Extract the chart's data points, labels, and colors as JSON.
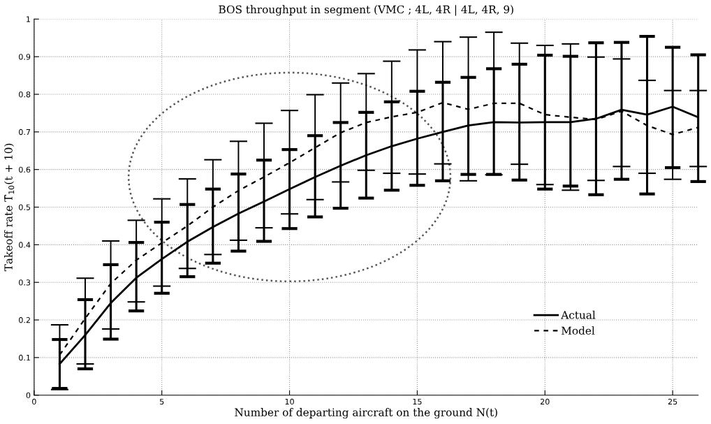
{
  "chart_data": {
    "type": "line",
    "title": "BOS throughput in segment (VMC ; 4L, 4R | 4L, 4R, 9)",
    "xlabel": "Number of departing aircraft on the ground N(t)",
    "ylabel": "Takeoff rate T̄$_{10}$(t + 10)",
    "x": [
      1,
      2,
      3,
      4,
      5,
      6,
      7,
      8,
      9,
      10,
      11,
      12,
      13,
      14,
      15,
      16,
      17,
      18,
      19,
      20,
      21,
      22,
      23,
      24,
      25,
      26
    ],
    "series": [
      {
        "name": "Actual",
        "color": "#000000",
        "line_style": "solid",
        "values": [
          0.083,
          0.16,
          0.245,
          0.312,
          0.362,
          0.408,
          0.447,
          0.483,
          0.515,
          0.548,
          0.58,
          0.61,
          0.638,
          0.662,
          0.682,
          0.7,
          0.717,
          0.726,
          0.725,
          0.726,
          0.726,
          0.735,
          0.759,
          0.746,
          0.767,
          0.739
        ],
        "errors": [
          [
            0.018,
            0.148
          ],
          [
            0.07,
            0.254
          ],
          [
            0.149,
            0.347
          ],
          [
            0.224,
            0.406
          ],
          [
            0.271,
            0.46
          ],
          [
            0.315,
            0.507
          ],
          [
            0.351,
            0.548
          ],
          [
            0.383,
            0.588
          ],
          [
            0.409,
            0.625
          ],
          [
            0.443,
            0.653
          ],
          [
            0.474,
            0.69
          ],
          [
            0.497,
            0.725
          ],
          [
            0.524,
            0.752
          ],
          [
            0.545,
            0.78
          ],
          [
            0.558,
            0.808
          ],
          [
            0.57,
            0.832
          ],
          [
            0.587,
            0.845
          ],
          [
            0.587,
            0.868
          ],
          [
            0.572,
            0.88
          ],
          [
            0.548,
            0.904
          ],
          [
            0.556,
            0.901
          ],
          [
            0.533,
            0.937
          ],
          [
            0.574,
            0.938
          ],
          [
            0.535,
            0.954
          ],
          [
            0.605,
            0.925
          ],
          [
            0.568,
            0.905
          ]
        ]
      },
      {
        "name": "Model",
        "color": "#000000",
        "line_style": "dashed",
        "values": [
          0.107,
          0.204,
          0.297,
          0.359,
          0.405,
          0.45,
          0.5,
          0.544,
          0.58,
          0.618,
          0.658,
          0.698,
          0.725,
          0.74,
          0.752,
          0.778,
          0.76,
          0.776,
          0.776,
          0.746,
          0.739,
          0.733,
          0.755,
          0.717,
          0.693,
          0.712
        ],
        "errors": [
          [
            0.015,
            0.187
          ],
          [
            0.083,
            0.311
          ],
          [
            0.176,
            0.41
          ],
          [
            0.248,
            0.465
          ],
          [
            0.29,
            0.522
          ],
          [
            0.337,
            0.575
          ],
          [
            0.374,
            0.626
          ],
          [
            0.412,
            0.675
          ],
          [
            0.445,
            0.723
          ],
          [
            0.482,
            0.757
          ],
          [
            0.52,
            0.799
          ],
          [
            0.567,
            0.83
          ],
          [
            0.598,
            0.855
          ],
          [
            0.59,
            0.888
          ],
          [
            0.588,
            0.918
          ],
          [
            0.615,
            0.94
          ],
          [
            0.57,
            0.952
          ],
          [
            0.586,
            0.965
          ],
          [
            0.614,
            0.936
          ],
          [
            0.56,
            0.93
          ],
          [
            0.545,
            0.934
          ],
          [
            0.571,
            0.899
          ],
          [
            0.608,
            0.894
          ],
          [
            0.59,
            0.837
          ],
          [
            0.574,
            0.81
          ],
          [
            0.608,
            0.81
          ]
        ]
      }
    ],
    "xlim": [
      0,
      26
    ],
    "xticks": [
      0,
      5,
      10,
      15,
      20,
      25
    ],
    "ylim": [
      0,
      1
    ],
    "yticks": [
      0,
      0.1,
      0.2,
      0.3,
      0.4,
      0.5,
      0.6,
      0.7,
      0.8,
      0.9,
      1
    ],
    "grid": true,
    "legend": "bottom right",
    "marker": "none"
  }
}
